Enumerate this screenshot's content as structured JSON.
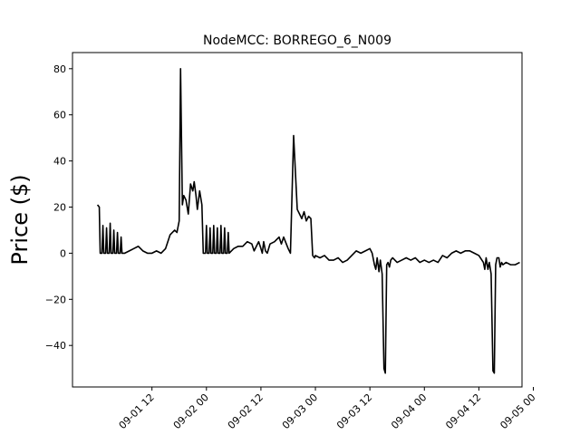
{
  "chart_data": {
    "type": "line",
    "title": "NodeMCC: BORREGO_6_N009",
    "xlabel": "",
    "ylabel": "Price ($)",
    "xlim_hours": [
      -5.5,
      93.5
    ],
    "ylim": [
      -58,
      87
    ],
    "grid": false,
    "legend": "none",
    "x_ticks": [
      {
        "hour": 12,
        "label": "09-01 12"
      },
      {
        "hour": 24,
        "label": "09-02 00"
      },
      {
        "hour": 36,
        "label": "09-02 12"
      },
      {
        "hour": 48,
        "label": "09-03 00"
      },
      {
        "hour": 60,
        "label": "09-03 12"
      },
      {
        "hour": 72,
        "label": "09-04 00"
      },
      {
        "hour": 84,
        "label": "09-04 12"
      },
      {
        "hour": 96,
        "label": "09-05 00"
      }
    ],
    "y_ticks": [
      {
        "value": 80,
        "label": "80"
      },
      {
        "value": 60,
        "label": "60"
      },
      {
        "value": 40,
        "label": "40"
      },
      {
        "value": 20,
        "label": "20"
      },
      {
        "value": 0,
        "label": "0"
      },
      {
        "value": -20,
        "label": "−20"
      },
      {
        "value": -40,
        "label": "−40"
      }
    ],
    "series": [
      {
        "color": "#000000",
        "points": [
          [
            0,
            21
          ],
          [
            0.4,
            20
          ],
          [
            0.6,
            0
          ],
          [
            1,
            0
          ],
          [
            1.2,
            12
          ],
          [
            1.4,
            0
          ],
          [
            1.8,
            0
          ],
          [
            2.0,
            11
          ],
          [
            2.2,
            0
          ],
          [
            2.6,
            0
          ],
          [
            2.8,
            13
          ],
          [
            3.0,
            0
          ],
          [
            3.4,
            0
          ],
          [
            3.6,
            10
          ],
          [
            3.8,
            0
          ],
          [
            4.2,
            0
          ],
          [
            4.4,
            9
          ],
          [
            4.6,
            0
          ],
          [
            5.0,
            0
          ],
          [
            5.2,
            7
          ],
          [
            5.4,
            0
          ],
          [
            6,
            0
          ],
          [
            7,
            1
          ],
          [
            8,
            2
          ],
          [
            9,
            3
          ],
          [
            10,
            1
          ],
          [
            11,
            0
          ],
          [
            12,
            0
          ],
          [
            13,
            1
          ],
          [
            14,
            0
          ],
          [
            15,
            2
          ],
          [
            16,
            8
          ],
          [
            17,
            10
          ],
          [
            17.5,
            9
          ],
          [
            18,
            14
          ],
          [
            18.3,
            80
          ],
          [
            18.7,
            21
          ],
          [
            19,
            25
          ],
          [
            19.5,
            23
          ],
          [
            20,
            17
          ],
          [
            20.5,
            30
          ],
          [
            21,
            27
          ],
          [
            21.3,
            31
          ],
          [
            21.7,
            25
          ],
          [
            22,
            19
          ],
          [
            22.5,
            27
          ],
          [
            23,
            21
          ],
          [
            23.3,
            0
          ],
          [
            23.8,
            0
          ],
          [
            24,
            12
          ],
          [
            24.2,
            0
          ],
          [
            24.6,
            0
          ],
          [
            24.8,
            11
          ],
          [
            25,
            0
          ],
          [
            25.4,
            0
          ],
          [
            25.6,
            12
          ],
          [
            25.8,
            0
          ],
          [
            26.2,
            0
          ],
          [
            26.4,
            11
          ],
          [
            26.6,
            0
          ],
          [
            27,
            0
          ],
          [
            27.2,
            12
          ],
          [
            27.4,
            0
          ],
          [
            27.8,
            0
          ],
          [
            28,
            11
          ],
          [
            28.2,
            0
          ],
          [
            28.6,
            0
          ],
          [
            28.8,
            9
          ],
          [
            29,
            0
          ],
          [
            30,
            2
          ],
          [
            31,
            3
          ],
          [
            32,
            3
          ],
          [
            33,
            5
          ],
          [
            34,
            4
          ],
          [
            34.5,
            1
          ],
          [
            35,
            3
          ],
          [
            35.5,
            5
          ],
          [
            36,
            2
          ],
          [
            36.3,
            0
          ],
          [
            36.6,
            5
          ],
          [
            37,
            1
          ],
          [
            37.4,
            0
          ],
          [
            38,
            4
          ],
          [
            39,
            5
          ],
          [
            40,
            7
          ],
          [
            40.5,
            4
          ],
          [
            41,
            7
          ],
          [
            42,
            2
          ],
          [
            42.5,
            0
          ],
          [
            42.8,
            22
          ],
          [
            43.2,
            51
          ],
          [
            43.6,
            35
          ],
          [
            44,
            19
          ],
          [
            44.5,
            17
          ],
          [
            45,
            15
          ],
          [
            45.5,
            18
          ],
          [
            46,
            14
          ],
          [
            46.5,
            16
          ],
          [
            47,
            15
          ],
          [
            47.4,
            -1
          ],
          [
            47.8,
            -2
          ],
          [
            48,
            -1
          ],
          [
            49,
            -2
          ],
          [
            50,
            -1
          ],
          [
            51,
            -3
          ],
          [
            52,
            -3
          ],
          [
            53,
            -2
          ],
          [
            54,
            -4
          ],
          [
            55,
            -3
          ],
          [
            56,
            -1
          ],
          [
            57,
            1
          ],
          [
            58,
            0
          ],
          [
            59,
            1
          ],
          [
            60,
            2
          ],
          [
            60.5,
            0
          ],
          [
            61,
            -5
          ],
          [
            61.3,
            -7
          ],
          [
            61.6,
            -2
          ],
          [
            62,
            -8
          ],
          [
            62.3,
            -3
          ],
          [
            62.7,
            -9
          ],
          [
            63.1,
            -50
          ],
          [
            63.4,
            -52
          ],
          [
            63.7,
            -5
          ],
          [
            64,
            -4
          ],
          [
            64.3,
            -6
          ],
          [
            64.6,
            -3
          ],
          [
            65,
            -2
          ],
          [
            66,
            -4
          ],
          [
            67,
            -3
          ],
          [
            68,
            -2
          ],
          [
            69,
            -3
          ],
          [
            70,
            -2
          ],
          [
            71,
            -4
          ],
          [
            72,
            -3
          ],
          [
            73,
            -4
          ],
          [
            74,
            -3
          ],
          [
            75,
            -4
          ],
          [
            76,
            -1
          ],
          [
            77,
            -2
          ],
          [
            78,
            0
          ],
          [
            79,
            1
          ],
          [
            80,
            0
          ],
          [
            81,
            1
          ],
          [
            82,
            1
          ],
          [
            83,
            0
          ],
          [
            84,
            -1
          ],
          [
            85,
            -4
          ],
          [
            85.3,
            -7
          ],
          [
            85.6,
            -2
          ],
          [
            86,
            -7
          ],
          [
            86.3,
            -4
          ],
          [
            86.7,
            -9
          ],
          [
            87.1,
            -51
          ],
          [
            87.4,
            -52
          ],
          [
            87.7,
            -5
          ],
          [
            88,
            -2
          ],
          [
            88.4,
            -2
          ],
          [
            88.7,
            -6
          ],
          [
            89,
            -4
          ],
          [
            89.3,
            -5
          ],
          [
            90,
            -4
          ],
          [
            91,
            -5
          ],
          [
            92,
            -5
          ],
          [
            93,
            -4
          ]
        ]
      }
    ]
  }
}
